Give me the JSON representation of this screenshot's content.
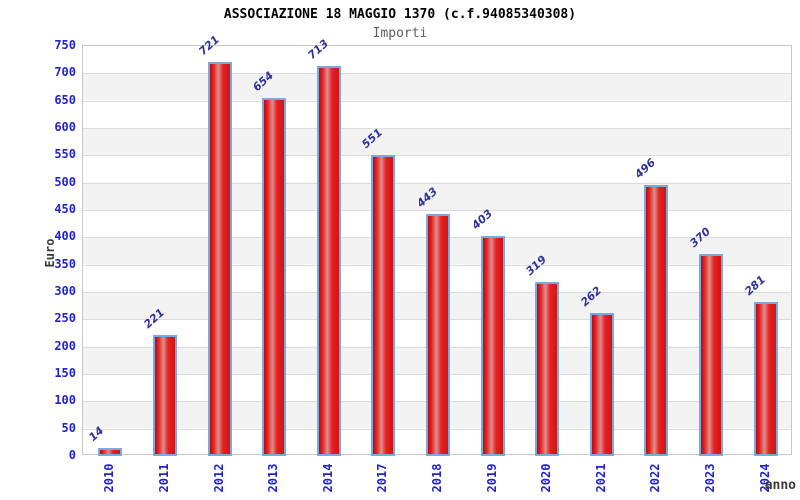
{
  "chart_data": {
    "type": "bar",
    "title": "ASSOCIAZIONE 18 MAGGIO 1370 (c.f.94085340308)",
    "subtitle": "Importi",
    "xlabel": "anno",
    "ylabel": "Euro",
    "categories": [
      "2010",
      "2011",
      "2012",
      "2013",
      "2014",
      "2017",
      "2018",
      "2019",
      "2020",
      "2021",
      "2022",
      "2023",
      "2024"
    ],
    "values": [
      14,
      221,
      721,
      654,
      713,
      551,
      443,
      403,
      319,
      262,
      496,
      370,
      281
    ],
    "ylim": [
      0,
      750
    ],
    "ytick_step": 50,
    "yticks": [
      0,
      50,
      100,
      150,
      200,
      250,
      300,
      350,
      400,
      450,
      500,
      550,
      600,
      650,
      700,
      750
    ],
    "grid": "horizontal gridlines with alternating background bands",
    "legend": "none",
    "value_labels_rotation_deg": -42,
    "x_labels_rotation_deg": -90,
    "colors": {
      "bar_fill": "#e52222",
      "bar_highlight": "#de8e8e",
      "bar_border": "#77aade",
      "axis_tick_label": "#2323cc",
      "value_label": "#31319c",
      "band_gray": "#f3f3f3",
      "gridline": "#dcdcdc",
      "frame": "#c9c9c9",
      "title": "#000000",
      "subtitle": "#5f5f5f",
      "axis_title": "#3b3b3b"
    }
  }
}
